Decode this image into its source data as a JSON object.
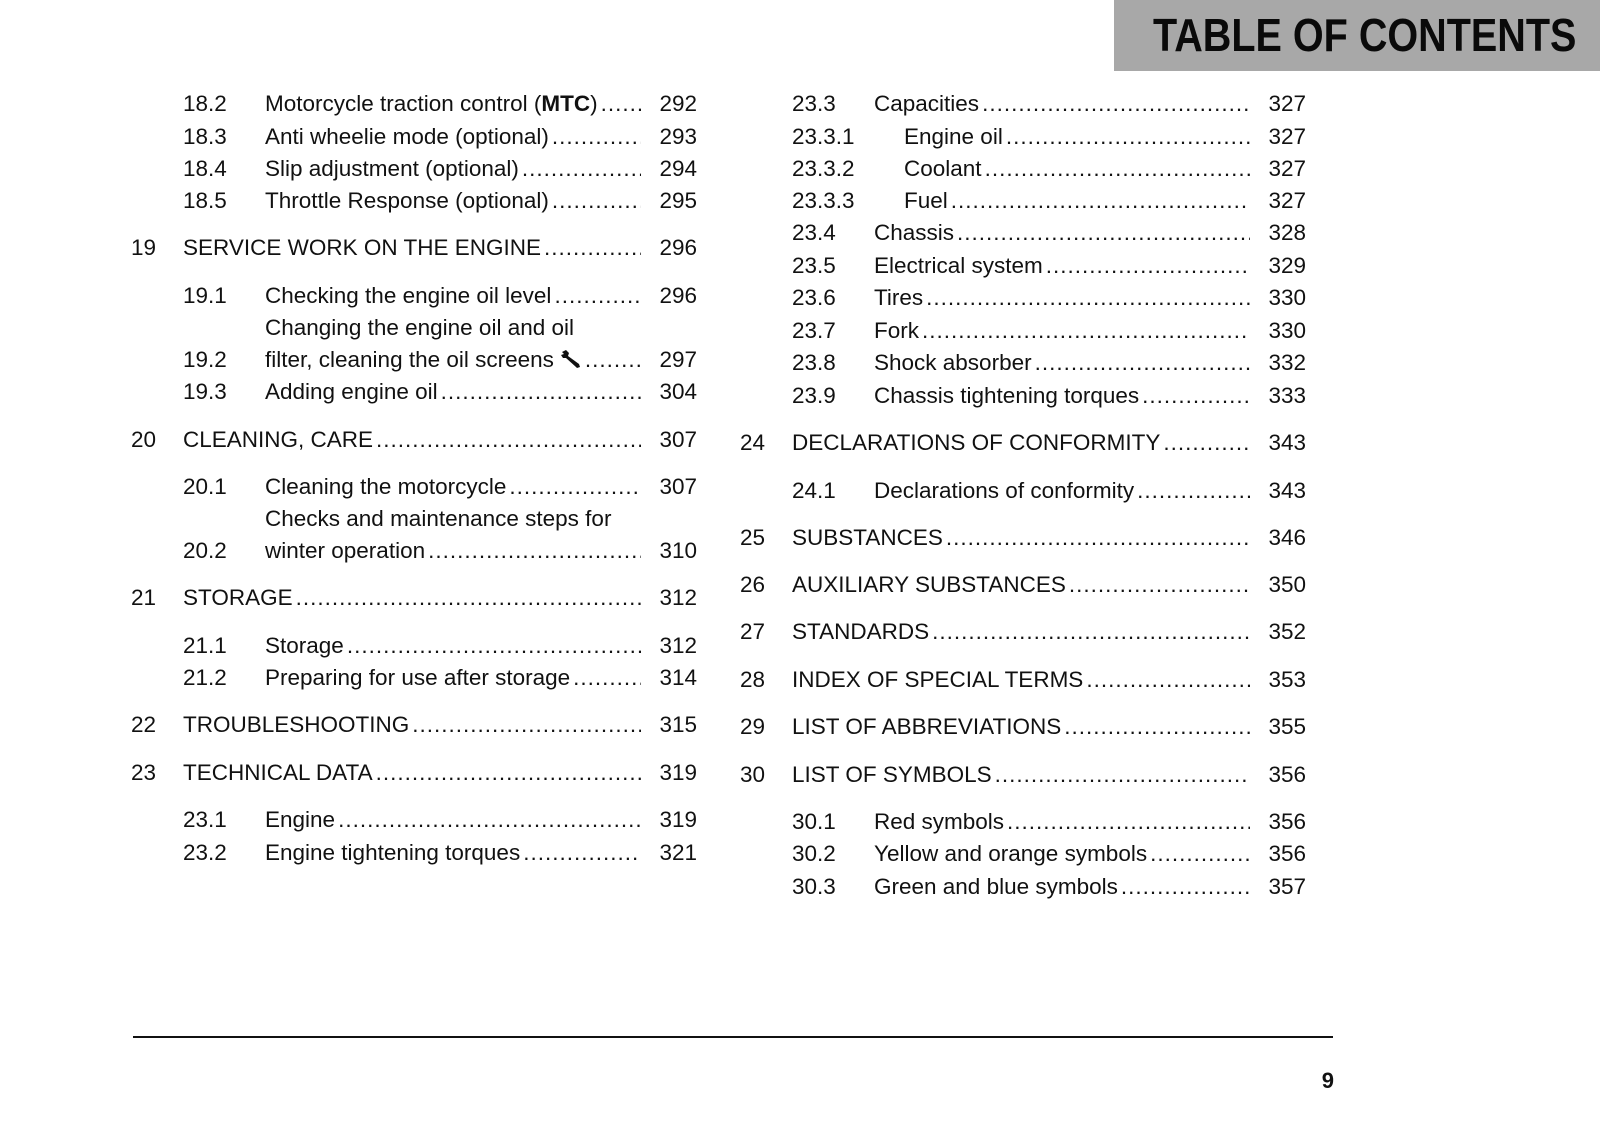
{
  "header": {
    "title": "TABLE OF CONTENTS"
  },
  "left": [
    {
      "level": 2,
      "num": "18.2",
      "title": "Motorcycle traction control (",
      "bold": "MTC",
      "title_after": ")",
      "page": "292"
    },
    {
      "level": 2,
      "num": "18.3",
      "title": "Anti wheelie mode (optional)",
      "page": "293"
    },
    {
      "level": 2,
      "num": "18.4",
      "title": "Slip adjustment (optional)",
      "page": "294"
    },
    {
      "level": 2,
      "num": "18.5",
      "title": "Throttle Response (optional)",
      "page": "295"
    },
    {
      "level": 1,
      "num": "19",
      "title": "SERVICE WORK ON THE ENGINE",
      "page": "296"
    },
    {
      "level": 2,
      "num": "19.1",
      "title": "Checking the engine oil level",
      "page": "296"
    },
    {
      "level": 2,
      "num": "19.2",
      "line1": "Changing the engine oil and oil",
      "title": "filter, cleaning the oil screens",
      "icon": "wrench-icon",
      "page": "297"
    },
    {
      "level": 2,
      "num": "19.3",
      "title": "Adding engine oil",
      "page": "304"
    },
    {
      "level": 1,
      "num": "20",
      "title": "CLEANING, CARE",
      "page": "307"
    },
    {
      "level": 2,
      "num": "20.1",
      "title": "Cleaning the motorcycle",
      "page": "307"
    },
    {
      "level": 2,
      "num": "20.2",
      "line1": "Checks and maintenance steps for",
      "title": "winter operation",
      "page": "310"
    },
    {
      "level": 1,
      "num": "21",
      "title": "STORAGE",
      "page": "312"
    },
    {
      "level": 2,
      "num": "21.1",
      "title": "Storage",
      "page": "312"
    },
    {
      "level": 2,
      "num": "21.2",
      "title": "Preparing for use after storage",
      "page": "314"
    },
    {
      "level": 1,
      "num": "22",
      "title": "TROUBLESHOOTING",
      "page": "315"
    },
    {
      "level": 1,
      "num": "23",
      "title": "TECHNICAL DATA",
      "page": "319"
    },
    {
      "level": 2,
      "num": "23.1",
      "title": "Engine",
      "page": "319"
    },
    {
      "level": 2,
      "num": "23.2",
      "title": "Engine tightening torques",
      "page": "321"
    }
  ],
  "right": [
    {
      "level": 2,
      "num": "23.3",
      "title": "Capacities",
      "page": "327"
    },
    {
      "level": 3,
      "num": "23.3.1",
      "title": "Engine oil",
      "page": "327"
    },
    {
      "level": 3,
      "num": "23.3.2",
      "title": "Coolant",
      "page": "327"
    },
    {
      "level": 3,
      "num": "23.3.3",
      "title": "Fuel",
      "page": "327"
    },
    {
      "level": 2,
      "num": "23.4",
      "title": "Chassis",
      "page": "328"
    },
    {
      "level": 2,
      "num": "23.5",
      "title": "Electrical system",
      "page": "329"
    },
    {
      "level": 2,
      "num": "23.6",
      "title": "Tires",
      "page": "330"
    },
    {
      "level": 2,
      "num": "23.7",
      "title": "Fork",
      "page": "330"
    },
    {
      "level": 2,
      "num": "23.8",
      "title": "Shock absorber",
      "page": "332"
    },
    {
      "level": 2,
      "num": "23.9",
      "title": "Chassis tightening torques",
      "page": "333"
    },
    {
      "level": 1,
      "num": "24",
      "title": "DECLARATIONS OF CONFORMITY",
      "page": "343"
    },
    {
      "level": 2,
      "num": "24.1",
      "title": "Declarations of conformity",
      "page": "343"
    },
    {
      "level": 1,
      "num": "25",
      "title": "SUBSTANCES",
      "page": "346"
    },
    {
      "level": 1,
      "num": "26",
      "title": "AUXILIARY SUBSTANCES",
      "page": "350"
    },
    {
      "level": 1,
      "num": "27",
      "title": "STANDARDS",
      "page": "352"
    },
    {
      "level": 1,
      "num": "28",
      "title": "INDEX OF SPECIAL TERMS",
      "page": "353"
    },
    {
      "level": 1,
      "num": "29",
      "title": "LIST OF ABBREVIATIONS",
      "page": "355"
    },
    {
      "level": 1,
      "num": "30",
      "title": "LIST OF SYMBOLS",
      "page": "356"
    },
    {
      "level": 2,
      "num": "30.1",
      "title": "Red symbols",
      "page": "356"
    },
    {
      "level": 2,
      "num": "30.2",
      "title": "Yellow and orange symbols",
      "page": "356"
    },
    {
      "level": 2,
      "num": "30.3",
      "title": "Green and blue symbols",
      "page": "357"
    }
  ],
  "footer": {
    "page_number": "9"
  }
}
